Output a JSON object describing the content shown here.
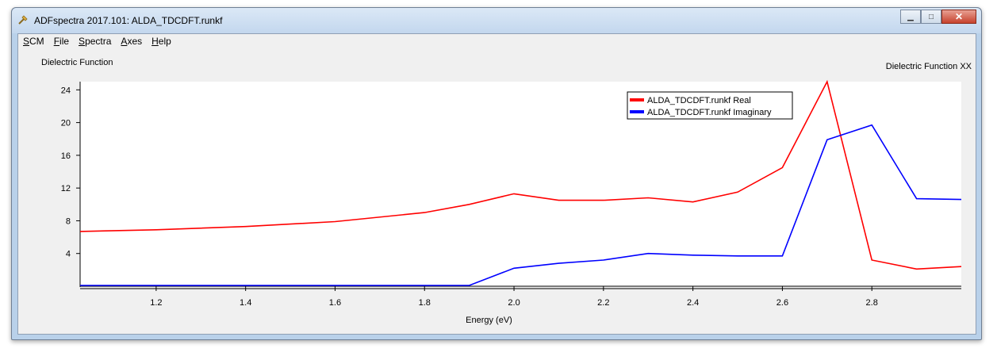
{
  "window": {
    "title": "ADFspectra 2017.101: ALDA_TDCDFT.runkf",
    "buttons": {
      "minimize": "▁",
      "maximize": "□",
      "close": "✕"
    }
  },
  "menu": [
    {
      "accel": "S",
      "rest": "CM"
    },
    {
      "accel": "F",
      "rest": "ile"
    },
    {
      "accel": "S",
      "rest": "pectra"
    },
    {
      "accel": "A",
      "rest": "xes"
    },
    {
      "accel": "H",
      "rest": "elp"
    }
  ],
  "chart_header": {
    "left": "Dielectric Function",
    "right": "Dielectric Function  XX"
  },
  "chart_data": {
    "type": "line",
    "xlabel": "Energy (eV)",
    "ylabel": "",
    "xlim": [
      1.03,
      3.0
    ],
    "ylim": [
      0,
      25
    ],
    "xticks": [
      "1.2",
      "1.4",
      "1.6",
      "1.8",
      "2.0",
      "2.2",
      "2.4",
      "2.6",
      "2.8"
    ],
    "yticks": [
      "4",
      "8",
      "12",
      "16",
      "20",
      "24"
    ],
    "grid": false,
    "legend_position": "top-right",
    "series": [
      {
        "name": "ALDA_TDCDFT.runkf Real",
        "color": "#ff0000",
        "x": [
          1.03,
          1.2,
          1.4,
          1.6,
          1.8,
          1.9,
          2.0,
          2.1,
          2.2,
          2.3,
          2.4,
          2.5,
          2.6,
          2.7,
          2.8,
          2.9,
          3.0
        ],
        "y": [
          6.7,
          6.9,
          7.3,
          7.9,
          9.0,
          10.0,
          11.3,
          10.5,
          10.5,
          10.8,
          10.3,
          11.5,
          14.5,
          25.0,
          3.2,
          2.1,
          2.4
        ]
      },
      {
        "name": "ALDA_TDCDFT.runkf Imaginary",
        "color": "#0000ff",
        "x": [
          1.03,
          1.2,
          1.4,
          1.6,
          1.8,
          1.9,
          2.0,
          2.1,
          2.2,
          2.3,
          2.4,
          2.5,
          2.6,
          2.7,
          2.8,
          2.9,
          3.0
        ],
        "y": [
          0.1,
          0.1,
          0.1,
          0.1,
          0.1,
          0.1,
          2.2,
          2.8,
          3.2,
          4.0,
          3.8,
          3.7,
          3.7,
          17.9,
          19.7,
          10.7,
          10.6
        ]
      }
    ]
  }
}
